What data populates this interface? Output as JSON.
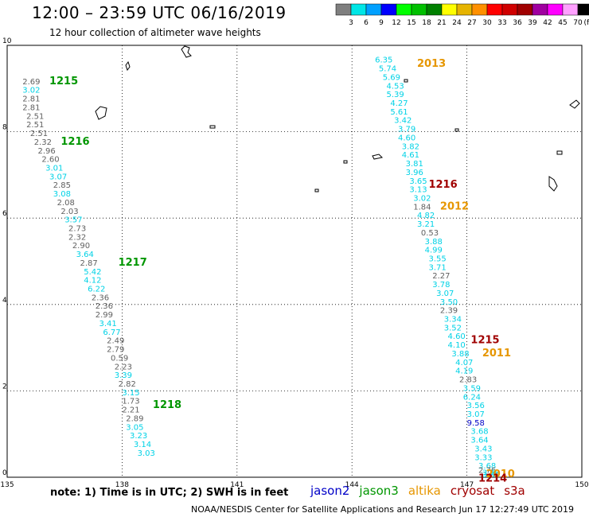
{
  "header": {
    "title": "12:00 – 23:59 UTC 06/16/2019",
    "subtitle": "12 hour collection of altimeter wave heights"
  },
  "colorbar": {
    "bins": [
      {
        "label": "3",
        "color": "#7f7f7f"
      },
      {
        "label": "6",
        "color": "#00e6e6"
      },
      {
        "label": "9",
        "color": "#00a0ff"
      },
      {
        "label": "12",
        "color": "#0000ff"
      },
      {
        "label": "15",
        "color": "#00ff00"
      },
      {
        "label": "18",
        "color": "#00c000"
      },
      {
        "label": "21",
        "color": "#008000"
      },
      {
        "label": "24",
        "color": "#ffff00"
      },
      {
        "label": "27",
        "color": "#e6b400"
      },
      {
        "label": "30",
        "color": "#ff9000"
      },
      {
        "label": "33",
        "color": "#ff0000"
      },
      {
        "label": "36",
        "color": "#d00000"
      },
      {
        "label": "39",
        "color": "#a00000"
      },
      {
        "label": "42",
        "color": "#a000a0"
      },
      {
        "label": "45",
        "color": "#ff00ff"
      },
      {
        "label": "70",
        "color": "#ffa0ff"
      },
      {
        "label": "",
        "color": "#000000"
      }
    ],
    "unit": "(ft)"
  },
  "footer": {
    "note": "note:  1) Time is in UTC;  2) SWH is in feet",
    "credit": "NOAA/NESDIS Center for Satellite Applications and Research     Jun 17 12:27:49 UTC 2019"
  },
  "satellites": [
    {
      "name": "jason2",
      "color": "#0000c8"
    },
    {
      "name": "jason3",
      "color": "#009600"
    },
    {
      "name": "altika",
      "color": "#e69600"
    },
    {
      "name": "cryosat",
      "color": "#a00000"
    },
    {
      "name": "s3a",
      "color": "#a00000"
    }
  ],
  "chart_data": {
    "type": "scatter",
    "xlim": [
      135,
      150
    ],
    "ylim": [
      0,
      10
    ],
    "x_ticks": [
      "135",
      "138",
      "141",
      "144",
      "147",
      "150"
    ],
    "y_ticks": [
      "0",
      "2",
      "4",
      "6",
      "8",
      "10"
    ],
    "grid": true,
    "track_west": {
      "x": [
        135.4,
        135.4,
        135.4,
        135.4,
        135.5,
        135.5,
        135.6,
        135.7,
        135.8,
        135.9,
        136.0,
        136.1,
        136.2,
        136.2,
        136.3,
        136.4,
        136.5,
        136.6,
        136.6,
        136.7,
        136.8,
        136.9,
        137.0,
        137.0,
        137.1,
        137.2,
        137.3,
        137.3,
        137.4,
        137.5,
        137.6,
        137.6,
        137.7,
        137.8,
        137.8,
        137.9,
        138.0,
        138.0,
        138.0,
        138.1,
        138.1,
        138.2,
        138.3,
        138.4
      ],
      "y": [
        9.1,
        8.9,
        8.7,
        8.5,
        8.3,
        8.1,
        7.9,
        7.7,
        7.5,
        7.3,
        7.1,
        6.9,
        6.7,
        6.5,
        6.3,
        6.1,
        5.9,
        5.7,
        5.5,
        5.3,
        5.1,
        4.9,
        4.7,
        4.5,
        4.3,
        4.1,
        3.9,
        3.7,
        3.5,
        3.3,
        3.1,
        2.9,
        2.7,
        2.5,
        2.3,
        2.1,
        1.9,
        1.7,
        1.5,
        1.3,
        1.1,
        0.9,
        0.7,
        0.5
      ],
      "values": [
        "2.69",
        "3.02",
        "2.81",
        "2.81",
        "2.51",
        "2.51",
        "2.51",
        "2.32",
        "2.96",
        "2.60",
        "3.01",
        "3.07",
        "2.85",
        "3.08",
        "2.08",
        "2.03",
        "3.57",
        "2.73",
        "2.32",
        "2.90",
        "3.64",
        "2.87",
        "5.42",
        "4.12",
        "6.22",
        "2.36",
        "2.36",
        "2.99",
        "3.41",
        "6.77",
        "2.49",
        "2.79",
        "0.59",
        "2.23",
        "3.39",
        "2.82",
        "3.15",
        "1.73",
        "2.21",
        "2.89",
        "3.05",
        "3.23",
        "3.14",
        "3.03"
      ]
    },
    "track_east": {
      "x": [
        144.6,
        144.7,
        144.8,
        144.9,
        144.9,
        145.0,
        145.0,
        145.1,
        145.2,
        145.2,
        145.3,
        145.3,
        145.4,
        145.4,
        145.5,
        145.5,
        145.6,
        145.6,
        145.7,
        145.7,
        145.8,
        145.9,
        145.9,
        146.0,
        146.0,
        146.1,
        146.1,
        146.2,
        146.3,
        146.3,
        146.4,
        146.4,
        146.5,
        146.5,
        146.6,
        146.7,
        146.7,
        146.8,
        146.9,
        146.9,
        147.0,
        147.0
      ],
      "y": [
        9.6,
        9.4,
        9.2,
        9.0,
        8.8,
        8.6,
        8.4,
        8.2,
        8.0,
        7.8,
        7.6,
        7.4,
        7.2,
        7.0,
        6.8,
        6.6,
        6.4,
        6.2,
        6.0,
        5.8,
        5.6,
        5.4,
        5.2,
        5.0,
        4.8,
        4.6,
        4.4,
        4.2,
        4.0,
        3.8,
        3.6,
        3.4,
        3.2,
        3.0,
        2.8,
        2.6,
        2.4,
        2.2,
        2.0,
        1.8,
        1.6,
        1.4
      ],
      "values": [
        "6.35",
        "5.74",
        "5.69",
        "4.53",
        "5.39",
        "4.27",
        "5.61",
        "3.42",
        "3.79",
        "4.60",
        "3.82",
        "4.61",
        "3.81",
        "3.96",
        "3.65",
        "3.13",
        "3.02",
        "1.84",
        "4.82",
        "3.21",
        "0.53",
        "3.88",
        "4.99",
        "3.55",
        "3.71",
        "2.27",
        "3.78",
        "3.07",
        "3.50",
        "2.39",
        "3.34",
        "3.52",
        "4.60",
        "4.10",
        "3.88",
        "4.07",
        "4.19",
        "2.83",
        "3.59",
        "6.24",
        "3.56",
        "3.07"
      ]
    },
    "track_east_tail": {
      "x": [
        147.0,
        147.1,
        147.1,
        147.2,
        147.2,
        147.3,
        147.3,
        147.4,
        147.4
      ],
      "y": [
        1.2,
        1.0,
        0.8,
        0.6,
        0.4,
        0.2,
        0.1,
        0.05,
        0.0
      ],
      "values": [
        "9.58",
        "3.68",
        "3.64",
        "3.43",
        "3.33",
        "3.68",
        "2.76",
        "3.28",
        "3.34"
      ]
    },
    "pass_labels": [
      {
        "text": "1215",
        "x": 136.1,
        "y": 9.1,
        "satellite": "jason3"
      },
      {
        "text": "1216",
        "x": 136.4,
        "y": 7.7,
        "satellite": "jason3"
      },
      {
        "text": "1217",
        "x": 137.9,
        "y": 4.9,
        "satellite": "jason3"
      },
      {
        "text": "1218",
        "x": 138.8,
        "y": 1.6,
        "satellite": "jason3"
      },
      {
        "text": "2013",
        "x": 145.7,
        "y": 9.5,
        "satellite": "altika"
      },
      {
        "text": "1216",
        "x": 146.0,
        "y": 6.7,
        "satellite": "cryosat"
      },
      {
        "text": "2012",
        "x": 146.3,
        "y": 6.2,
        "satellite": "altika"
      },
      {
        "text": "1215",
        "x": 147.1,
        "y": 3.1,
        "satellite": "cryosat"
      },
      {
        "text": "2011",
        "x": 147.4,
        "y": 2.8,
        "satellite": "altika"
      },
      {
        "text": "2010",
        "x": 147.5,
        "y": 0.0,
        "satellite": "altika"
      },
      {
        "text": "1214",
        "x": 147.3,
        "y": -0.1,
        "satellite": "cryosat"
      }
    ]
  }
}
